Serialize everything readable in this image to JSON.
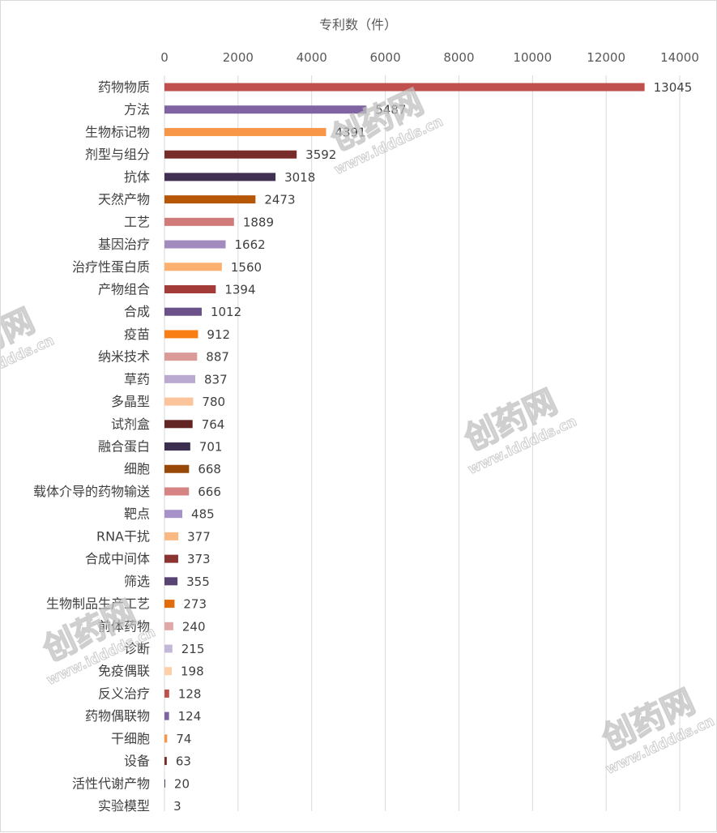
{
  "chart_data": {
    "type": "bar",
    "orientation": "horizontal",
    "title": "",
    "xlabel": "专利数（件）",
    "ylabel": "",
    "xlim": [
      0,
      14000
    ],
    "x_ticks": [
      0,
      2000,
      4000,
      6000,
      8000,
      10000,
      12000,
      14000
    ],
    "x_tick_labels": [
      "0",
      "2000",
      "4000",
      "6000",
      "8000",
      "10000",
      "12000",
      "14000"
    ],
    "x_axis_position": "top",
    "grid": true,
    "legend": "none",
    "categories": [
      "药物物质",
      "方法",
      "生物标记物",
      "剂型与组分",
      "抗体",
      "天然产物",
      "工艺",
      "基因治疗",
      "治疗性蛋白质",
      "产物组合",
      "合成",
      "疫苗",
      "纳米技术",
      "草药",
      "多晶型",
      "试剂盒",
      "融合蛋白",
      "细胞",
      "载体介导的药物输送",
      "靶点",
      "RNA干扰",
      "合成中间体",
      "筛选",
      "生物制品生产工艺",
      "前体药物",
      "诊断",
      "免疫偶联",
      "反义治疗",
      "药物偶联物",
      "干细胞",
      "设备",
      "活性代谢产物",
      "实验模型"
    ],
    "values": [
      13045,
      5487,
      4391,
      3592,
      3018,
      2473,
      1889,
      1662,
      1560,
      1394,
      1012,
      912,
      887,
      837,
      780,
      764,
      701,
      668,
      666,
      485,
      377,
      373,
      355,
      273,
      240,
      215,
      198,
      128,
      124,
      74,
      63,
      20,
      3
    ],
    "data_labels": [
      "13045",
      "5487",
      "4391",
      "3592",
      "3018",
      "2473",
      "1889",
      "1662",
      "1560",
      "1394",
      "1012",
      "912",
      "887",
      "837",
      "780",
      "764",
      "701",
      "668",
      "666",
      "485",
      "377",
      "373",
      "355",
      "273",
      "240",
      "215",
      "198",
      "128",
      "124",
      "74",
      "63",
      "20",
      "3"
    ],
    "colors": [
      "#C0504D",
      "#8064A2",
      "#F79646",
      "#772C2A",
      "#403152",
      "#B65708",
      "#D07B79",
      "#A28CBE",
      "#FBB06F",
      "#A33B39",
      "#6B5189",
      "#F97F15",
      "#D99A98",
      "#BAA9D1",
      "#FCC49A",
      "#632523",
      "#3B2E4E",
      "#984807",
      "#D58483",
      "#A691C8",
      "#FAB982",
      "#8B3331",
      "#574474",
      "#E26C0A",
      "#E0A8A7",
      "#C4B8D8",
      "#FDD0AA"
    ]
  },
  "watermark": {
    "text": "创药网",
    "url": "www.idddds.cn",
    "color": "#bfbfbf"
  }
}
